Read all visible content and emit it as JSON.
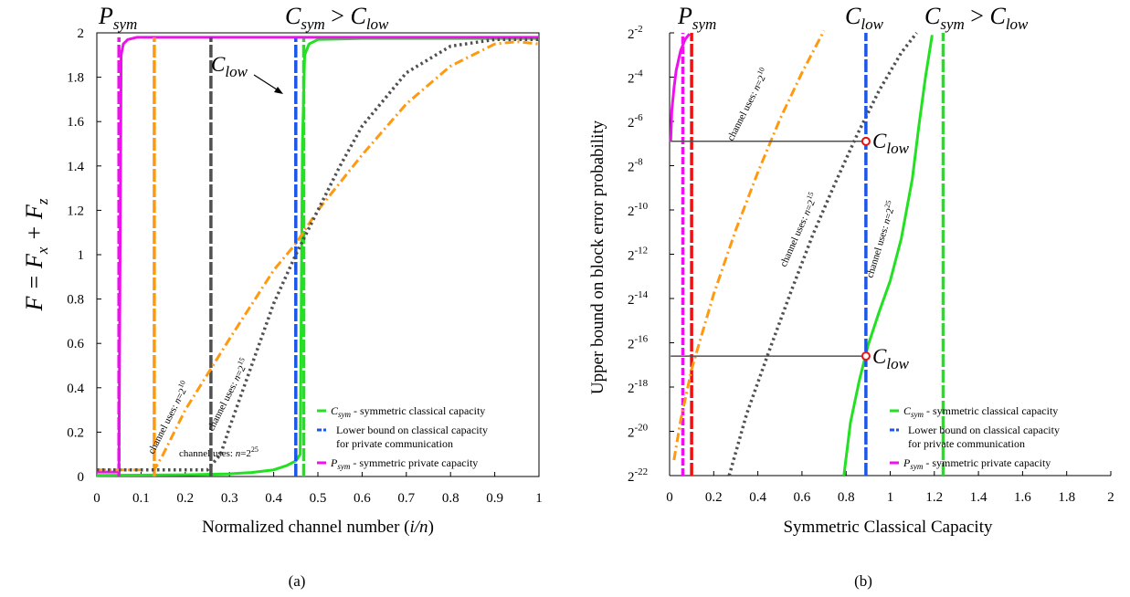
{
  "colors": {
    "green": "#22e022",
    "blue": "#1a56e8",
    "magenta": "#ee11ee",
    "orange": "#ff9a10",
    "gray": "#505050",
    "red": "#ee1111"
  },
  "chart_data": [
    {
      "type": "line",
      "panel_label": "(a)",
      "xlabel_main": "Normalized channel number (",
      "xlabel_var": "i/n",
      "xlabel_close": ")",
      "ylabel_F": "F = F",
      "ylabel_x": "x",
      "ylabel_plus": " + F",
      "ylabel_z": "z",
      "xlim": [
        0,
        1
      ],
      "ylim": [
        0,
        2
      ],
      "xticks": [
        "0",
        "0.1",
        "0.2",
        "0.3",
        "0.4",
        "0.5",
        "0.6",
        "0.7",
        "0.8",
        "0.9",
        "1"
      ],
      "yticks": [
        "0",
        "0.2",
        "0.4",
        "0.6",
        "0.8",
        "1",
        "1.2",
        "1.4",
        "1.6",
        "1.8",
        "2"
      ],
      "top_labels": {
        "P": "P",
        "P_sub": "sym",
        "C": "C",
        "C_sub": "sym",
        "gt": " > ",
        "C2": "C",
        "C2_sub": "low"
      },
      "clow_label": {
        "C": "C",
        "sub": "low"
      },
      "annotations": {
        "uses_210": "channel uses: n=2^10",
        "uses_215": "channel uses: n=2^15",
        "uses_225": "channel uses: n=2^25",
        "pre": "channel uses: ",
        "n": "n",
        "eq": "=2",
        "e10": "10",
        "e15": "15",
        "e25": "25"
      },
      "series": [
        {
          "color": "green",
          "style": "solid",
          "x": [
            0,
            0.1,
            0.2,
            0.3,
            0.35,
            0.4,
            0.43,
            0.45,
            0.46,
            0.465,
            0.47,
            0.48,
            0.5,
            0.6,
            1
          ],
          "y": [
            0.005,
            0.006,
            0.008,
            0.012,
            0.018,
            0.03,
            0.05,
            0.07,
            0.1,
            1.5,
            1.9,
            1.95,
            1.97,
            1.975,
            1.975
          ]
        },
        {
          "color": "green",
          "style": "vline",
          "x": [
            0.468,
            0.468
          ],
          "y": [
            0,
            1.98
          ]
        },
        {
          "color": "blue",
          "style": "vline",
          "x": [
            0.45,
            0.45
          ],
          "y": [
            0,
            1.98
          ]
        },
        {
          "color": "magenta",
          "style": "solid",
          "x": [
            0,
            0.05,
            0.055,
            0.06,
            0.07,
            0.09,
            0.12,
            0.2,
            0.5,
            1
          ],
          "y": [
            0.02,
            0.02,
            1.9,
            1.95,
            1.97,
            1.98,
            1.98,
            1.98,
            1.98,
            1.98
          ]
        },
        {
          "color": "magenta",
          "style": "vline",
          "x": [
            0.05,
            0.05
          ],
          "y": [
            0,
            1.98
          ]
        },
        {
          "color": "orange",
          "style": "vline",
          "x": [
            0.13,
            0.13
          ],
          "y": [
            0,
            1.98
          ]
        },
        {
          "color": "gray",
          "style": "vline",
          "x": [
            0.258,
            0.258
          ],
          "y": [
            0,
            1.98
          ]
        },
        {
          "color": "orange",
          "style": "dashdot",
          "x": [
            0,
            0.13,
            0.15,
            0.2,
            0.3,
            0.4,
            0.45,
            0.5,
            0.6,
            0.7,
            0.8,
            0.9,
            0.95,
            1
          ],
          "y": [
            0.03,
            0.03,
            0.1,
            0.3,
            0.62,
            0.93,
            1.05,
            1.2,
            1.45,
            1.68,
            1.85,
            1.95,
            1.96,
            1.95
          ]
        },
        {
          "color": "gray",
          "style": "dotted",
          "x": [
            0,
            0.25,
            0.28,
            0.3,
            0.35,
            0.4,
            0.45,
            0.5,
            0.55,
            0.6,
            0.7,
            0.8,
            0.9,
            1
          ],
          "y": [
            0.03,
            0.03,
            0.1,
            0.22,
            0.5,
            0.78,
            1.0,
            1.2,
            1.4,
            1.58,
            1.82,
            1.94,
            1.97,
            1.97
          ]
        }
      ],
      "legend": [
        {
          "color": "green",
          "sym": "C",
          "sub": "sym",
          "text": " - symmetric classical capacity"
        },
        {
          "color": "blue",
          "sym": "",
          "sub": "",
          "text": "Lower bound on classical capacity",
          "text2": "for private communication"
        },
        {
          "color": "magenta",
          "sym": "P",
          "sub": "sym",
          "text": " - symmetric private capacity"
        }
      ]
    },
    {
      "type": "line",
      "panel_label": "(b)",
      "xlabel": "Symmetric Classical Capacity",
      "ylabel": "Upper bound on block error probability",
      "xlim": [
        0,
        2
      ],
      "ylim_log2": [
        -22,
        -2
      ],
      "xticks": [
        "0",
        "0.2",
        "0.4",
        "0.6",
        "0.8",
        "1",
        "1.2",
        "1.4",
        "1.6",
        "1.8",
        "2"
      ],
      "ytick_base": "2",
      "ytick_exps": [
        "-2",
        "-4",
        "-6",
        "-8",
        "-10",
        "-12",
        "-14",
        "-16",
        "-18",
        "-20",
        "-22"
      ],
      "top_labels": {
        "P": "P",
        "P_sub": "sym",
        "C_low": "C",
        "C_low_sub": "low",
        "C": "C",
        "C_sub": "sym",
        "gt": " > ",
        "C2": "C",
        "C2_sub": "low"
      },
      "clow_marks": [
        {
          "C": "C",
          "sub": "low",
          "x": 0.89,
          "logy": -6.9
        },
        {
          "C": "C",
          "sub": "low",
          "x": 0.89,
          "logy": -16.6
        }
      ],
      "annotations": {
        "pre": "channel uses: ",
        "n": "n",
        "eq": "=2",
        "e10": "10",
        "e15": "15",
        "e25": "25"
      },
      "series": [
        {
          "color": "magenta",
          "style": "solid",
          "x": [
            0.005,
            0.01,
            0.02,
            0.03,
            0.05,
            0.07,
            0.09
          ],
          "logy": [
            -6.9,
            -5.5,
            -4.5,
            -3.7,
            -2.8,
            -2.3,
            -2.05
          ]
        },
        {
          "color": "magenta",
          "style": "dashed",
          "x": [
            0.06,
            0.06
          ],
          "logy": [
            -22,
            -2
          ]
        },
        {
          "color": "red",
          "style": "vline",
          "x": [
            0.1,
            0.1
          ],
          "logy": [
            -22,
            -2
          ]
        },
        {
          "color": "orange",
          "style": "dashdot",
          "x": [
            0.02,
            0.05,
            0.1,
            0.2,
            0.3,
            0.4,
            0.5,
            0.6,
            0.7
          ],
          "logy": [
            -21.3,
            -19.5,
            -17.2,
            -13.8,
            -10.9,
            -8.3,
            -5.9,
            -3.8,
            -1.9
          ]
        },
        {
          "color": "gray",
          "style": "dotted",
          "x": [
            0.27,
            0.35,
            0.45,
            0.55,
            0.65,
            0.75,
            0.85,
            0.95,
            1.05,
            1.12
          ],
          "logy": [
            -22,
            -19.2,
            -16.4,
            -13.7,
            -11.1,
            -8.8,
            -6.6,
            -4.6,
            -2.9,
            -2
          ]
        },
        {
          "color": "green",
          "style": "solid",
          "x": [
            0.79,
            0.82,
            0.86,
            0.9,
            0.95,
            1.0,
            1.05,
            1.1,
            1.13,
            1.16,
            1.19
          ],
          "logy": [
            -22,
            -19.6,
            -17.7,
            -16.1,
            -14.6,
            -13.2,
            -11.3,
            -8.6,
            -6.2,
            -4.0,
            -2.1
          ]
        },
        {
          "color": "green",
          "style": "vline",
          "x": [
            1.24,
            1.24
          ],
          "logy": [
            -22,
            -2
          ]
        },
        {
          "color": "blue",
          "style": "vline",
          "x": [
            0.89,
            0.89
          ],
          "logy": [
            -22,
            -2
          ]
        },
        {
          "color": "gray",
          "style": "hline",
          "x": [
            0.005,
            0.89
          ],
          "logy": [
            -6.9,
            -6.9
          ]
        },
        {
          "color": "gray",
          "style": "hline",
          "x": [
            0.005,
            0.89
          ],
          "logy": [
            -16.6,
            -16.6
          ]
        }
      ],
      "legend": [
        {
          "color": "green",
          "sym": "C",
          "sub": "sym",
          "text": " - symmetric classical capacity"
        },
        {
          "color": "blue",
          "sym": "",
          "sub": "",
          "text": "Lower bound on classical capacity",
          "text2": "for private communication"
        },
        {
          "color": "magenta",
          "sym": "P",
          "sub": "sym",
          "text": " - symmetric private capacity"
        }
      ]
    }
  ]
}
